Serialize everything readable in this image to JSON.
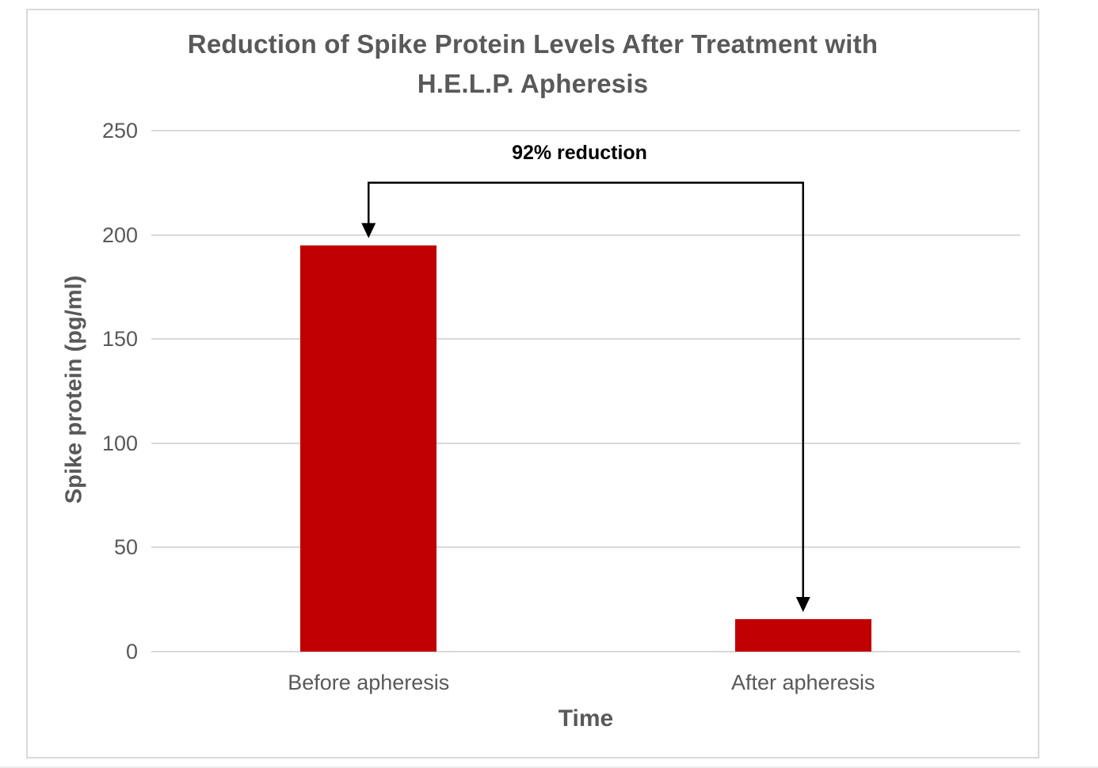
{
  "chart_data": {
    "type": "bar",
    "title": "Reduction of Spike Protein Levels After Treatment with H.E.L.P. Apheresis",
    "title_lines": [
      "Reduction of Spike Protein Levels After Treatment with",
      "H.E.L.P. Apheresis"
    ],
    "categories": [
      "Before apheresis",
      "After apheresis"
    ],
    "values": [
      195,
      15.6
    ],
    "xlabel": "Time",
    "ylabel": "Spike protein (pg/ml)",
    "ylim": [
      0,
      250
    ],
    "yticks": [
      0,
      50,
      100,
      150,
      200,
      250
    ],
    "grid": true,
    "legend": false,
    "annotation": "92% reduction"
  },
  "colors": {
    "bar": "#c00000",
    "gridline": "#d9d9d9",
    "axis_text": "#595959",
    "title_text": "#595959",
    "annotation_text": "#000000",
    "arrow": "#000000",
    "frame_border": "#d9d9d9"
  }
}
